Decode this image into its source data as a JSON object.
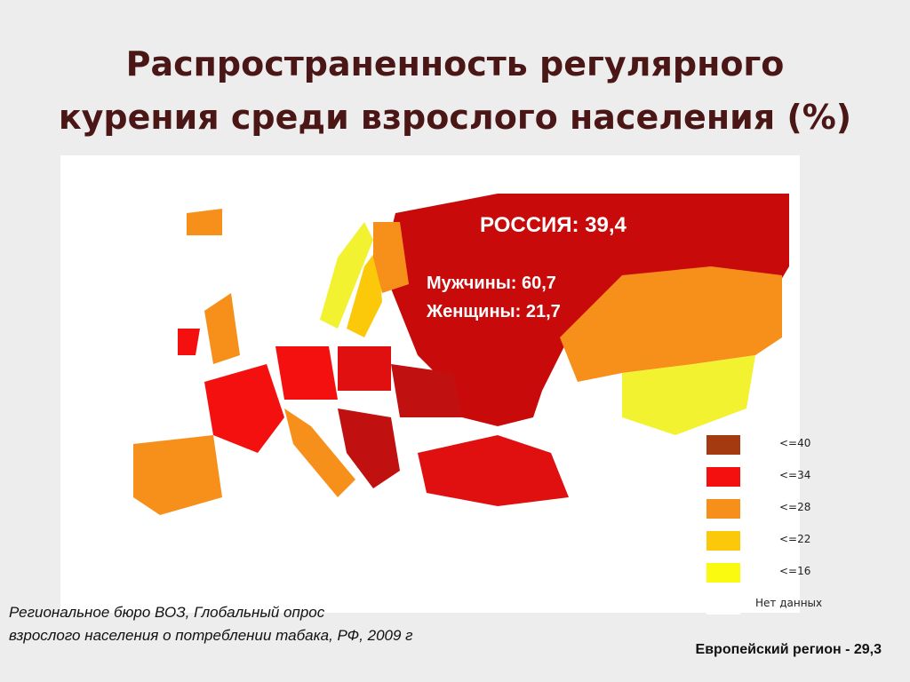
{
  "title": [
    "Распространенность регулярного",
    "курения среди взрослого населения (%)"
  ],
  "map": {
    "russia_label": "РОССИЯ: 39,4",
    "men": "Мужчины: 60,7",
    "women": "Женщины: 21,7"
  },
  "legend": [
    {
      "label": "<=40",
      "color": "#a33a10"
    },
    {
      "label": "<=34",
      "color": "#f51010"
    },
    {
      "label": "<=28",
      "color": "#f7901a"
    },
    {
      "label": "<=22",
      "color": "#fcc90a"
    },
    {
      "label": "<=16",
      "color": "#fafa10"
    },
    {
      "label": "Нет данных",
      "color": "#ffffff"
    }
  ],
  "source": [
    "Региональное бюро ВОЗ, Глобальный опрос",
    "взрослого населения о потреблении табака, РФ, 2009 г"
  ],
  "footer": "Европейский регион - 29,3"
}
